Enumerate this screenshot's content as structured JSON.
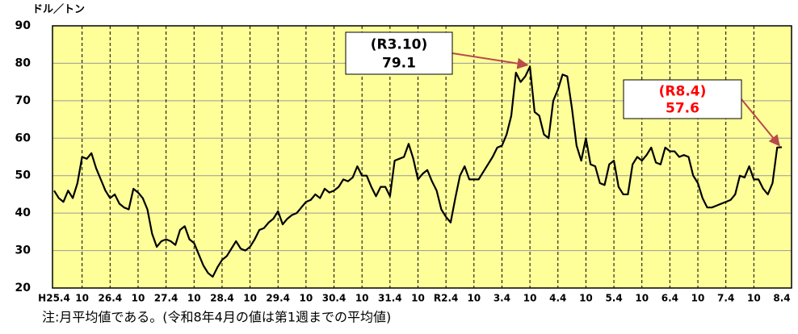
{
  "chart_data": {
    "type": "line",
    "y_axis_label": "ドル／トン",
    "note": "注:月平均値である。(令和8年4月の値は第1週までの平均値)",
    "categories": [
      "H25.4",
      null,
      null,
      null,
      null,
      null,
      "10",
      null,
      null,
      null,
      null,
      null,
      "26.4",
      null,
      null,
      null,
      null,
      null,
      "10",
      null,
      null,
      null,
      null,
      null,
      "27.4",
      null,
      null,
      null,
      null,
      null,
      "10",
      null,
      null,
      null,
      null,
      null,
      "28.4",
      null,
      null,
      null,
      null,
      null,
      "10",
      null,
      null,
      null,
      null,
      null,
      "29.4",
      null,
      null,
      null,
      null,
      null,
      "10",
      null,
      null,
      null,
      null,
      null,
      "30.4",
      null,
      null,
      null,
      null,
      null,
      "10",
      null,
      null,
      null,
      null,
      null,
      "31.4",
      null,
      null,
      null,
      null,
      null,
      "10",
      null,
      null,
      null,
      null,
      null,
      "R2.4",
      null,
      null,
      null,
      null,
      null,
      "10",
      null,
      null,
      null,
      null,
      null,
      "3.4",
      null,
      null,
      null,
      null,
      null,
      "10",
      null,
      null,
      null,
      null,
      null,
      "4.4",
      null,
      null,
      null,
      null,
      null,
      "10",
      null,
      null,
      null,
      null,
      null,
      "5.4",
      null,
      null,
      null,
      null,
      null,
      "10",
      null,
      null,
      null,
      null,
      null,
      "6.4",
      null,
      null,
      null,
      null,
      null,
      "10",
      null,
      null,
      null,
      null,
      null,
      "7.4",
      null,
      null,
      null,
      null,
      null,
      "10",
      null,
      null,
      null,
      null,
      null,
      "8.4"
    ],
    "series": [
      {
        "name": null,
        "color": "#000000",
        "values": [
          46,
          44,
          43,
          46,
          44,
          48,
          55,
          54.5,
          56,
          52,
          49,
          46,
          44,
          45,
          42.5,
          41.5,
          41,
          46.5,
          45.5,
          44,
          41,
          34.5,
          31,
          32.5,
          33,
          32.5,
          31.5,
          35.5,
          36.5,
          33,
          32,
          29,
          26,
          24,
          23,
          25.5,
          27.5,
          28.5,
          30.5,
          32.5,
          30.5,
          30,
          31,
          33,
          35.5,
          36,
          37.5,
          38.5,
          40.5,
          37,
          38.5,
          39.5,
          40,
          41.5,
          43,
          43.5,
          45,
          44,
          46.5,
          45.5,
          46,
          47,
          49,
          48.5,
          49.5,
          52.5,
          50,
          50,
          47,
          44.5,
          47,
          47,
          44.5,
          54,
          54.5,
          55,
          58.5,
          54.5,
          49,
          50.5,
          51.5,
          48.5,
          46,
          41,
          39,
          37.5,
          44,
          50,
          52.5,
          49,
          49,
          49,
          51,
          53,
          55,
          57.5,
          58,
          61,
          66,
          77.5,
          75,
          76.5,
          79.1,
          67,
          66,
          61,
          60,
          70,
          73,
          77,
          76.5,
          68,
          58,
          54,
          60,
          53,
          52.5,
          48,
          47.5,
          53,
          54,
          47,
          45,
          45,
          53,
          55,
          54,
          55.5,
          57.5,
          53.5,
          53,
          57.5,
          56.5,
          56.5,
          55,
          55.5,
          55,
          50,
          48,
          44,
          41.5,
          41.5,
          42,
          42.5,
          43,
          43.5,
          45,
          50,
          49.5,
          52.5,
          49,
          49,
          46.5,
          45,
          48,
          57.5,
          57.6
        ]
      }
    ],
    "ylim": [
      20,
      90
    ],
    "yticks": [
      20,
      30,
      40,
      50,
      60,
      70,
      80,
      90
    ],
    "grid": true,
    "plot_background": "#ffff99",
    "annotations": [
      {
        "label": "(R3.10)",
        "value_label": "79.1",
        "color": "#000000"
      },
      {
        "label": "(R8.4)",
        "value_label": "57.6",
        "color": "#ff0000"
      }
    ]
  }
}
